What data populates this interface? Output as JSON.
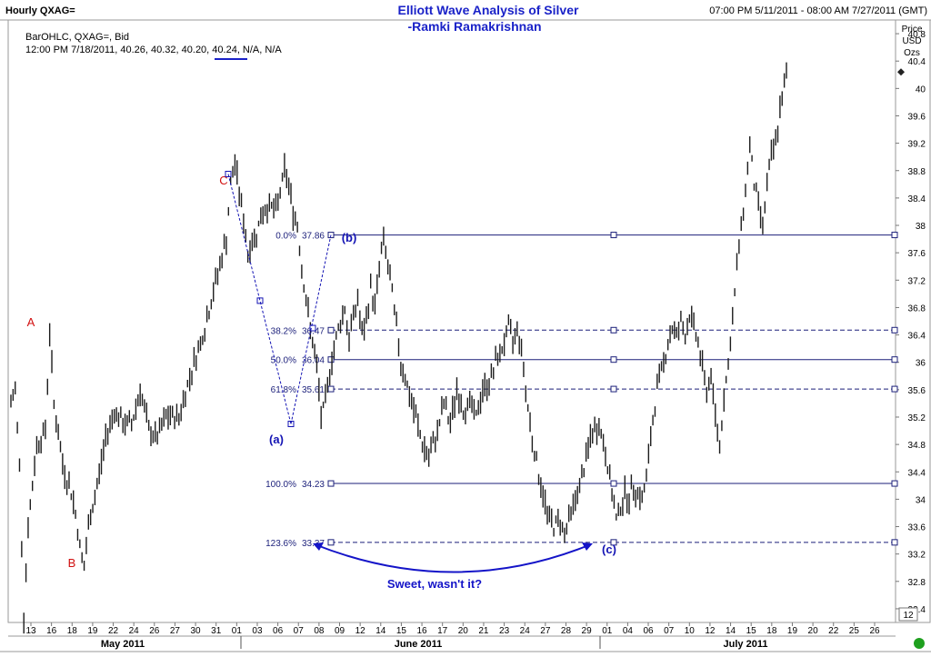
{
  "header": {
    "left": "Hourly QXAG=",
    "title": "Elliott Wave Analysis of Silver",
    "subtitle": "-Ramki Ramakrishnan",
    "range": "07:00 PM 5/11/2011 - 08:00 AM 7/27/2011 (GMT)"
  },
  "legend": {
    "line1": "BarOHLC, QXAG=, Bid",
    "line2": "12:00 PM 7/18/2011, 40.26, 40.32, 40.20, 40.24, N/A, N/A",
    "accent_color": "#1a22c8"
  },
  "axis_label": {
    "l1": "Price",
    "l2": "USD",
    "l3": "Ozs"
  },
  "bottom_right_box": "12",
  "chart_data": {
    "type": "ohlc-bar",
    "ylim": [
      32.2,
      41.0
    ],
    "y_ticks": [
      32.4,
      32.8,
      33.2,
      33.6,
      34,
      34.4,
      34.8,
      35.2,
      35.6,
      36,
      36.4,
      36.8,
      37.2,
      37.6,
      38,
      38.4,
      38.8,
      39.2,
      39.6,
      40,
      40.4,
      40.8
    ],
    "y_tick_labels": [
      "32.4",
      "32.8",
      "33.2",
      "33.6",
      "34",
      "34.4",
      "34.8",
      "35.2",
      "35.6",
      "36",
      "36.4",
      "36.8",
      "37.2",
      "37.6",
      "38",
      "38.4",
      "38.8",
      "39.2",
      "39.6",
      "40",
      "40.4",
      "40.8"
    ],
    "x_day_labels": [
      "13",
      "16",
      "18",
      "19",
      "22",
      "24",
      "26",
      "27",
      "30",
      "31",
      "01",
      "03",
      "06",
      "07",
      "08",
      "09",
      "12",
      "14",
      "15",
      "16",
      "17",
      "20",
      "21",
      "23",
      "24",
      "27",
      "28",
      "29",
      "01",
      "04",
      "06",
      "07",
      "10",
      "12",
      "14",
      "15",
      "18",
      "19",
      "20",
      "22",
      "25",
      "26"
    ],
    "x_months": [
      "May 2011",
      "June 2011",
      "July 2011"
    ],
    "last_price": 40.24,
    "path": [
      [
        0,
        35.4
      ],
      [
        2,
        35.6
      ],
      [
        4,
        34.5
      ],
      [
        6,
        32.3
      ],
      [
        8,
        33.6
      ],
      [
        12,
        34.8
      ],
      [
        16,
        35.0
      ],
      [
        18,
        36.45
      ],
      [
        20,
        35.4
      ],
      [
        24,
        34.5
      ],
      [
        28,
        34.1
      ],
      [
        30,
        33.8
      ],
      [
        32,
        33.3
      ],
      [
        34,
        33.0
      ],
      [
        36,
        33.6
      ],
      [
        40,
        34.2
      ],
      [
        44,
        34.9
      ],
      [
        48,
        35.3
      ],
      [
        52,
        35.1
      ],
      [
        56,
        35.1
      ],
      [
        60,
        35.6
      ],
      [
        64,
        35.0
      ],
      [
        68,
        34.9
      ],
      [
        72,
        35.2
      ],
      [
        78,
        35.2
      ],
      [
        84,
        35.9
      ],
      [
        90,
        36.5
      ],
      [
        96,
        37.3
      ],
      [
        100,
        37.8
      ],
      [
        102,
        38.6
      ],
      [
        104,
        38.9
      ],
      [
        107,
        38.3
      ],
      [
        110,
        37.6
      ],
      [
        114,
        37.9
      ],
      [
        117,
        38.2
      ],
      [
        120,
        38.3
      ],
      [
        123,
        38.2
      ],
      [
        125,
        38.5
      ],
      [
        127,
        38.8
      ],
      [
        129,
        38.6
      ],
      [
        131,
        38.2
      ],
      [
        133,
        38.0
      ],
      [
        135,
        37.4
      ],
      [
        137,
        36.9
      ],
      [
        139,
        36.5
      ],
      [
        141,
        36.1
      ],
      [
        142,
        35.9
      ],
      [
        143,
        35.6
      ],
      [
        144,
        35.2
      ],
      [
        146,
        35.4
      ],
      [
        148,
        35.9
      ],
      [
        150,
        36.2
      ],
      [
        152,
        36.5
      ],
      [
        155,
        36.8
      ],
      [
        157,
        36.3
      ],
      [
        159,
        36.7
      ],
      [
        161,
        36.9
      ],
      [
        163,
        36.4
      ],
      [
        165,
        36.6
      ],
      [
        167,
        37.1
      ],
      [
        169,
        36.8
      ],
      [
        171,
        37.4
      ],
      [
        173,
        37.8
      ],
      [
        175,
        37.4
      ],
      [
        177,
        37.0
      ],
      [
        179,
        36.5
      ],
      [
        181,
        36.0
      ],
      [
        183,
        35.8
      ],
      [
        185,
        35.5
      ],
      [
        188,
        35.2
      ],
      [
        191,
        34.8
      ],
      [
        194,
        34.6
      ],
      [
        196,
        34.8
      ],
      [
        198,
        35.0
      ],
      [
        201,
        35.4
      ],
      [
        204,
        35.1
      ],
      [
        207,
        35.6
      ],
      [
        210,
        35.3
      ],
      [
        213,
        35.4
      ],
      [
        216,
        35.2
      ],
      [
        219,
        35.6
      ],
      [
        222,
        35.7
      ],
      [
        225,
        36.0
      ],
      [
        228,
        36.2
      ],
      [
        231,
        36.5
      ],
      [
        233,
        36.3
      ],
      [
        235,
        36.5
      ],
      [
        237,
        36.2
      ],
      [
        239,
        35.6
      ],
      [
        241,
        35.1
      ],
      [
        243,
        34.7
      ],
      [
        246,
        34.2
      ],
      [
        249,
        33.8
      ],
      [
        252,
        33.6
      ],
      [
        255,
        33.7
      ],
      [
        257,
        33.5
      ],
      [
        259,
        33.7
      ],
      [
        261,
        33.9
      ],
      [
        263,
        34.1
      ],
      [
        265,
        34.3
      ],
      [
        267,
        34.6
      ],
      [
        269,
        34.9
      ],
      [
        271,
        35.0
      ],
      [
        273,
        35.1
      ],
      [
        275,
        34.8
      ],
      [
        277,
        34.5
      ],
      [
        279,
        34.1
      ],
      [
        281,
        33.7
      ],
      [
        283,
        33.9
      ],
      [
        285,
        34.1
      ],
      [
        287,
        34.0
      ],
      [
        289,
        34.2
      ],
      [
        291,
        34.1
      ],
      [
        293,
        34.0
      ],
      [
        295,
        34.3
      ],
      [
        297,
        34.9
      ],
      [
        299,
        35.4
      ],
      [
        301,
        35.8
      ],
      [
        303,
        36.0
      ],
      [
        305,
        36.3
      ],
      [
        307,
        36.5
      ],
      [
        309,
        36.4
      ],
      [
        311,
        36.6
      ],
      [
        313,
        36.4
      ],
      [
        315,
        36.7
      ],
      [
        317,
        36.5
      ],
      [
        319,
        36.3
      ],
      [
        321,
        35.9
      ],
      [
        323,
        35.6
      ],
      [
        325,
        35.8
      ],
      [
        327,
        35.2
      ],
      [
        329,
        34.8
      ],
      [
        331,
        35.5
      ],
      [
        333,
        36.0
      ],
      [
        335,
        36.6
      ],
      [
        337,
        37.4
      ],
      [
        339,
        38.0
      ],
      [
        341,
        38.5
      ],
      [
        343,
        39.2
      ],
      [
        345,
        38.6
      ],
      [
        347,
        38.3
      ],
      [
        349,
        38.0
      ],
      [
        351,
        38.6
      ],
      [
        353,
        39.0
      ],
      [
        355,
        39.2
      ],
      [
        357,
        39.7
      ],
      [
        359,
        40.0
      ],
      [
        360,
        40.24
      ]
    ],
    "waves": [
      {
        "label": "A",
        "color": "#d11010",
        "price": 36.45,
        "x_frac": 0.03
      },
      {
        "label": "B",
        "color": "#d11010",
        "price": 33.0,
        "x_frac": 0.082
      },
      {
        "label": "C",
        "color": "#d11010",
        "price": 38.8,
        "x_frac": 0.25
      },
      {
        "label": "(a)",
        "color": "#1414b4",
        "price": 35.1,
        "x_frac": 0.31
      },
      {
        "label": "(b)",
        "color": "#1414b4",
        "price": 37.86,
        "x_frac": 0.385
      },
      {
        "label": "(c)",
        "color": "#1414b4",
        "price": 33.37,
        "x_frac": 0.68
      }
    ],
    "fib_levels": [
      {
        "pct": "0.0%",
        "price": 37.86,
        "value_label": "37.86",
        "style": "solid"
      },
      {
        "pct": "38.2%",
        "price": 36.47,
        "value_label": "36.47",
        "style": "dashed"
      },
      {
        "pct": "50.0%",
        "price": 36.04,
        "value_label": "36.04",
        "style": "solid"
      },
      {
        "pct": "61.8%",
        "price": 35.61,
        "value_label": "35.61",
        "style": "dashed"
      },
      {
        "pct": "100.0%",
        "price": 34.23,
        "value_label": "34.23",
        "style": "solid"
      },
      {
        "pct": "123.6%",
        "price": 33.37,
        "value_label": "33.37",
        "style": "dashed"
      }
    ],
    "annotation": "Sweet, wasn't it?",
    "colors": {
      "bars": "#1c1c1c",
      "fib": "#1b1f7a",
      "arrow": "#1414c8"
    }
  }
}
